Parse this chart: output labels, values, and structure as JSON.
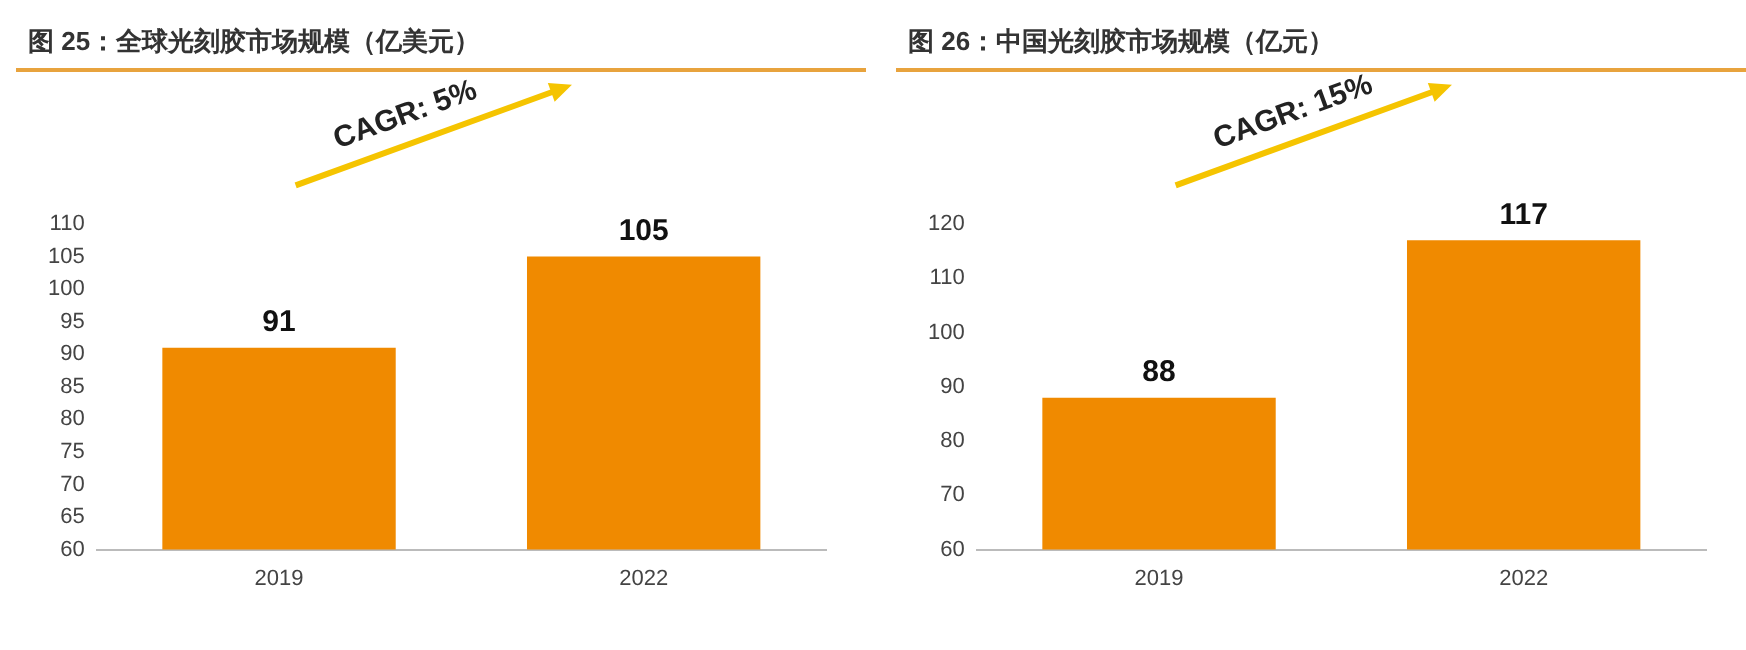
{
  "chart_data": [
    {
      "type": "bar",
      "title": "图 25：全球光刻胶市场规模（亿美元）",
      "categories": [
        "2019",
        "2022"
      ],
      "values": [
        91,
        105
      ],
      "color": "#f08a00",
      "ylim": [
        60,
        110
      ],
      "yticks": [
        60,
        65,
        70,
        75,
        80,
        85,
        90,
        95,
        100,
        105,
        110
      ],
      "grid": false,
      "data_labels": true,
      "annotations": [
        "CAGR: 5%"
      ]
    },
    {
      "type": "bar",
      "title": "图 26：中国光刻胶市场规模（亿元）",
      "categories": [
        "2019",
        "2022"
      ],
      "values": [
        88,
        117
      ],
      "color": "#f08a00",
      "ylim": [
        60,
        120
      ],
      "yticks": [
        60,
        70,
        80,
        90,
        100,
        110,
        120
      ],
      "grid": false,
      "data_labels": true,
      "annotations": [
        "CAGR: 15%"
      ]
    }
  ]
}
